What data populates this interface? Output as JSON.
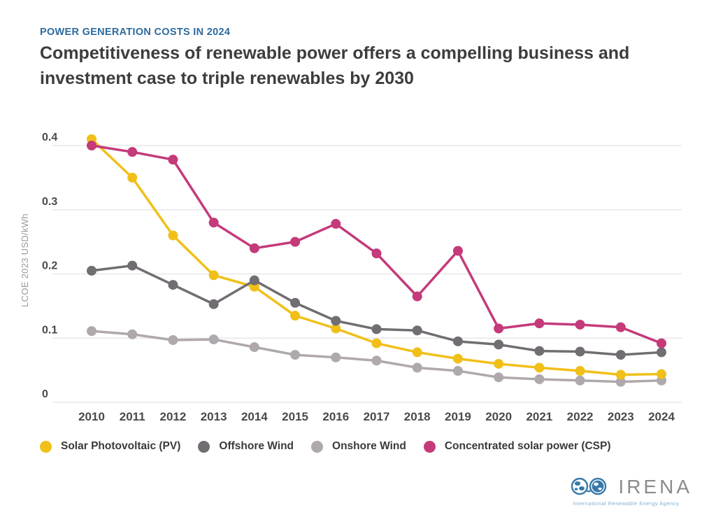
{
  "header": {
    "eyebrow": "POWER GENERATION COSTS IN 2024",
    "title_line1": "Competitiveness of renewable power offers a compelling business and",
    "title_line2": "investment case to triple renewables by 2030"
  },
  "chart_data": {
    "type": "line",
    "title": "",
    "xlabel": "",
    "ylabel": "LCOE 2023 USD/kWh",
    "x": [
      "2010",
      "2011",
      "2012",
      "2013",
      "2014",
      "2015",
      "2016",
      "2017",
      "2018",
      "2019",
      "2020",
      "2021",
      "2022",
      "2023",
      "2024"
    ],
    "yticks": [
      0,
      0.1,
      0.2,
      0.3,
      0.4
    ],
    "ylim": [
      0,
      0.45
    ],
    "grid": true,
    "legend_position": "bottom",
    "marker": "circle",
    "series": [
      {
        "name": "Solar Photovoltaic (PV)",
        "color": "#F0C019",
        "values": [
          0.41,
          0.35,
          0.26,
          0.198,
          0.18,
          0.135,
          0.115,
          0.092,
          0.078,
          0.068,
          0.06,
          0.054,
          0.049,
          0.043,
          0.044
        ]
      },
      {
        "name": "Offshore Wind",
        "color": "#716D72",
        "values": [
          0.205,
          0.213,
          0.183,
          0.153,
          0.19,
          0.155,
          0.127,
          0.114,
          0.112,
          0.095,
          0.09,
          0.08,
          0.079,
          0.074,
          0.078
        ]
      },
      {
        "name": "Onshore Wind",
        "color": "#AFA8AD",
        "values": [
          0.111,
          0.106,
          0.097,
          0.098,
          0.086,
          0.074,
          0.07,
          0.065,
          0.054,
          0.049,
          0.039,
          0.036,
          0.034,
          0.032,
          0.034
        ]
      },
      {
        "name": "Concentrated solar power (CSP)",
        "color": "#C43A7A",
        "values": [
          0.4,
          0.39,
          0.378,
          0.28,
          0.24,
          0.25,
          0.278,
          0.232,
          0.165,
          0.236,
          0.115,
          0.123,
          0.121,
          0.117,
          0.092
        ]
      }
    ]
  },
  "colors": {
    "gridline": "#E4E3E4",
    "axis_text": "#4A4A4A",
    "eyebrow": "#2E6B9D",
    "title": "#3D3D3C",
    "logo_blue": "#3779A9"
  },
  "logo": {
    "name": "IRENA",
    "tagline": "International Renewable Energy Agency"
  }
}
